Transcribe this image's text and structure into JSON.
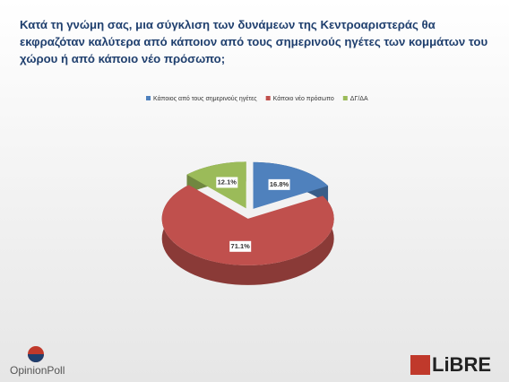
{
  "chart_data": {
    "type": "pie",
    "title": "Κατά τη γνώμη σας, μια σύγκλιση των δυνάμεων της Κεντροαριστεράς θα εκφραζόταν καλύτερα από κάποιον από τους σημερινούς ηγέτες των κομμάτων του χώρου ή από κάποιο νέο πρόσωπο;",
    "categories": [
      "Κάποιος από τους σημερινούς ηγέτες",
      "Κάποιο νέο πρόσωπο",
      "ΔΓ/ΔΑ"
    ],
    "values": [
      16.8,
      71.1,
      12.1
    ],
    "value_labels": [
      "16.8%",
      "71.1%",
      "12.1%"
    ],
    "colors": [
      "#4f81bd",
      "#c0504d",
      "#9bbb59"
    ],
    "legend": "top"
  },
  "logos": {
    "left": "OpinionPoll",
    "right": "LiBRE"
  }
}
